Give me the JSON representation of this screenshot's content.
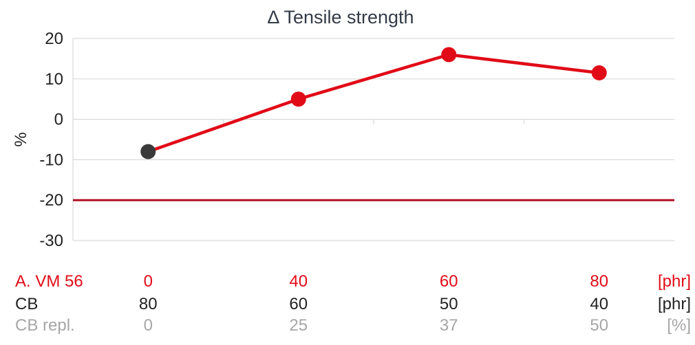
{
  "chart_data": {
    "type": "line",
    "title": "Δ Tensile strength",
    "ylabel": "%",
    "ylim": [
      -30,
      20
    ],
    "yticks": [
      20,
      10,
      0,
      -10,
      -20,
      -30
    ],
    "ytick_labels": [
      "20",
      "10",
      "0",
      "-10",
      "-20",
      "-30"
    ],
    "grid": true,
    "x": [
      "0",
      "40",
      "60",
      "80"
    ],
    "series": [
      {
        "name": "",
        "values": [
          -8,
          5,
          16,
          11.5
        ],
        "color": "#e10b17",
        "first_point_color": "#3a3a3a"
      }
    ],
    "reference_line": {
      "value": -20,
      "color": "#b01020"
    },
    "table_rows": [
      {
        "label": "A. VM 56",
        "values": [
          "0",
          "40",
          "60",
          "80"
        ],
        "unit": "[phr]",
        "color": "#e10b17"
      },
      {
        "label": "CB",
        "values": [
          "80",
          "60",
          "50",
          "40"
        ],
        "unit": "[phr]",
        "color": "#222222"
      },
      {
        "label": "CB repl.",
        "values": [
          "0",
          "25",
          "37",
          "50"
        ],
        "unit": "[%]",
        "color": "#a6a6a6"
      }
    ]
  }
}
